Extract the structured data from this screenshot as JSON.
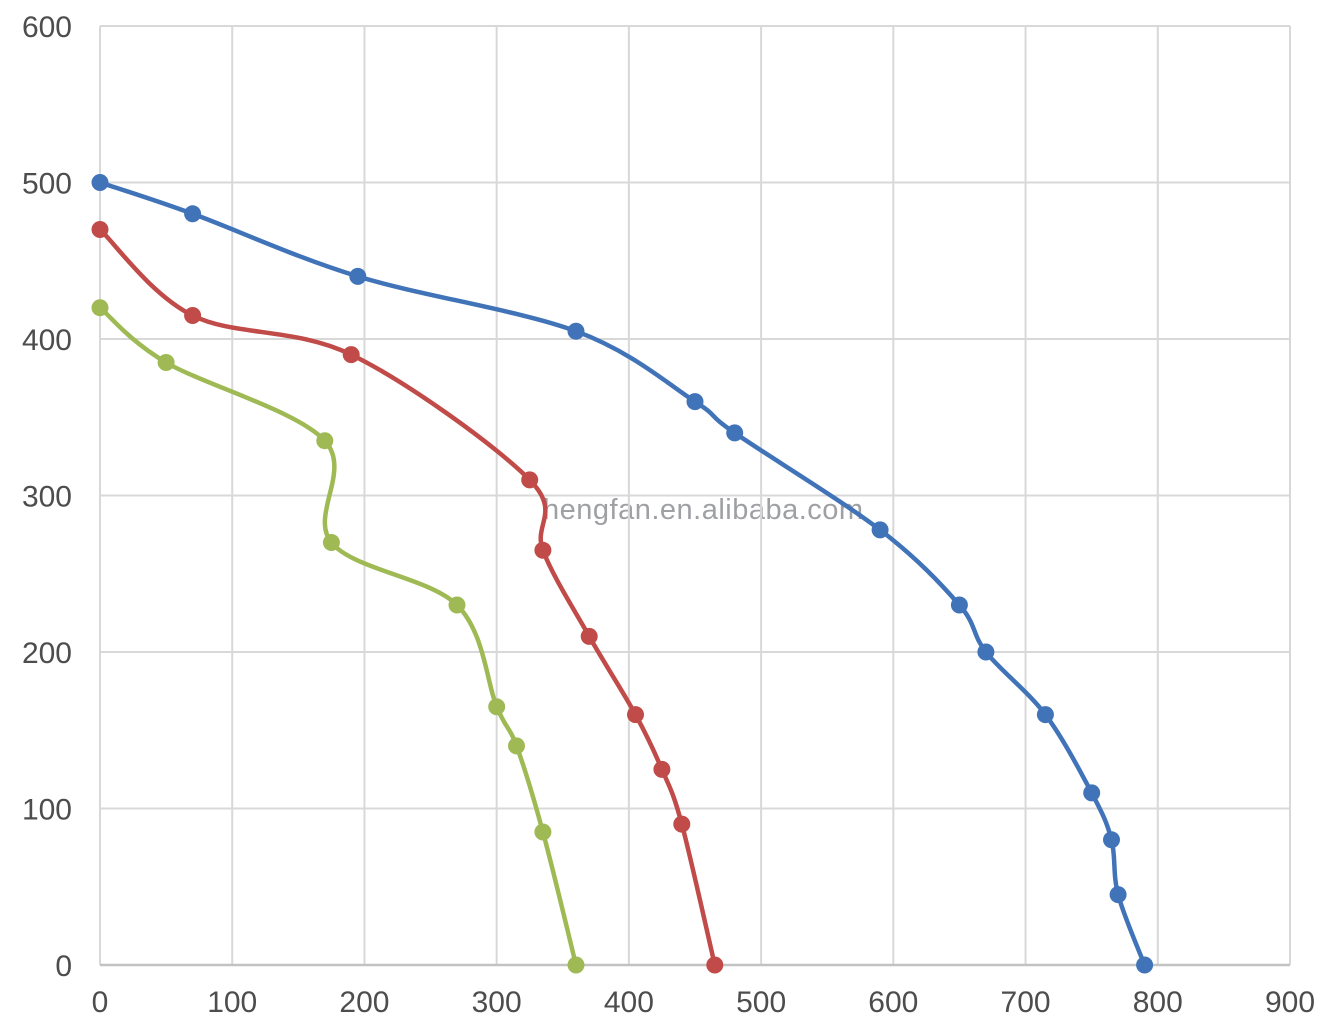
{
  "watermark": {
    "text": "hengfan.en.alibaba.com",
    "color": "#9FA0A4"
  },
  "colors": {
    "background": "#FFFFFF",
    "grid": "#D8D8D8",
    "axis": "#C2C2C2",
    "tick_label": "#4D4D4D"
  },
  "chart_data": {
    "type": "line",
    "title": "",
    "subtitle": "",
    "xlabel": "",
    "ylabel": "",
    "xlim": [
      0,
      900
    ],
    "ylim": [
      0,
      600
    ],
    "x_ticks": [
      0,
      100,
      200,
      300,
      400,
      500,
      600,
      700,
      800,
      900
    ],
    "y_ticks": [
      0,
      100,
      200,
      300,
      400,
      500,
      600
    ],
    "grid": true,
    "legend_position": "none",
    "line_style": "smooth",
    "marker": "circle",
    "series": [
      {
        "name": "blue",
        "color": "#4173B8",
        "points": [
          [
            0,
            500
          ],
          [
            70,
            480
          ],
          [
            195,
            440
          ],
          [
            360,
            405
          ],
          [
            450,
            360
          ],
          [
            480,
            340
          ],
          [
            590,
            278
          ],
          [
            650,
            230
          ],
          [
            670,
            200
          ],
          [
            715,
            160
          ],
          [
            750,
            110
          ],
          [
            765,
            80
          ],
          [
            770,
            45
          ],
          [
            790,
            0
          ]
        ]
      },
      {
        "name": "red",
        "color": "#C04B48",
        "points": [
          [
            0,
            470
          ],
          [
            70,
            415
          ],
          [
            190,
            390
          ],
          [
            325,
            310
          ],
          [
            335,
            265
          ],
          [
            370,
            210
          ],
          [
            405,
            160
          ],
          [
            425,
            125
          ],
          [
            440,
            90
          ],
          [
            465,
            0
          ]
        ]
      },
      {
        "name": "green",
        "color": "#9FBA55",
        "points": [
          [
            0,
            420
          ],
          [
            50,
            385
          ],
          [
            170,
            335
          ],
          [
            175,
            270
          ],
          [
            270,
            230
          ],
          [
            300,
            165
          ],
          [
            315,
            140
          ],
          [
            335,
            85
          ],
          [
            360,
            0
          ]
        ]
      }
    ]
  }
}
